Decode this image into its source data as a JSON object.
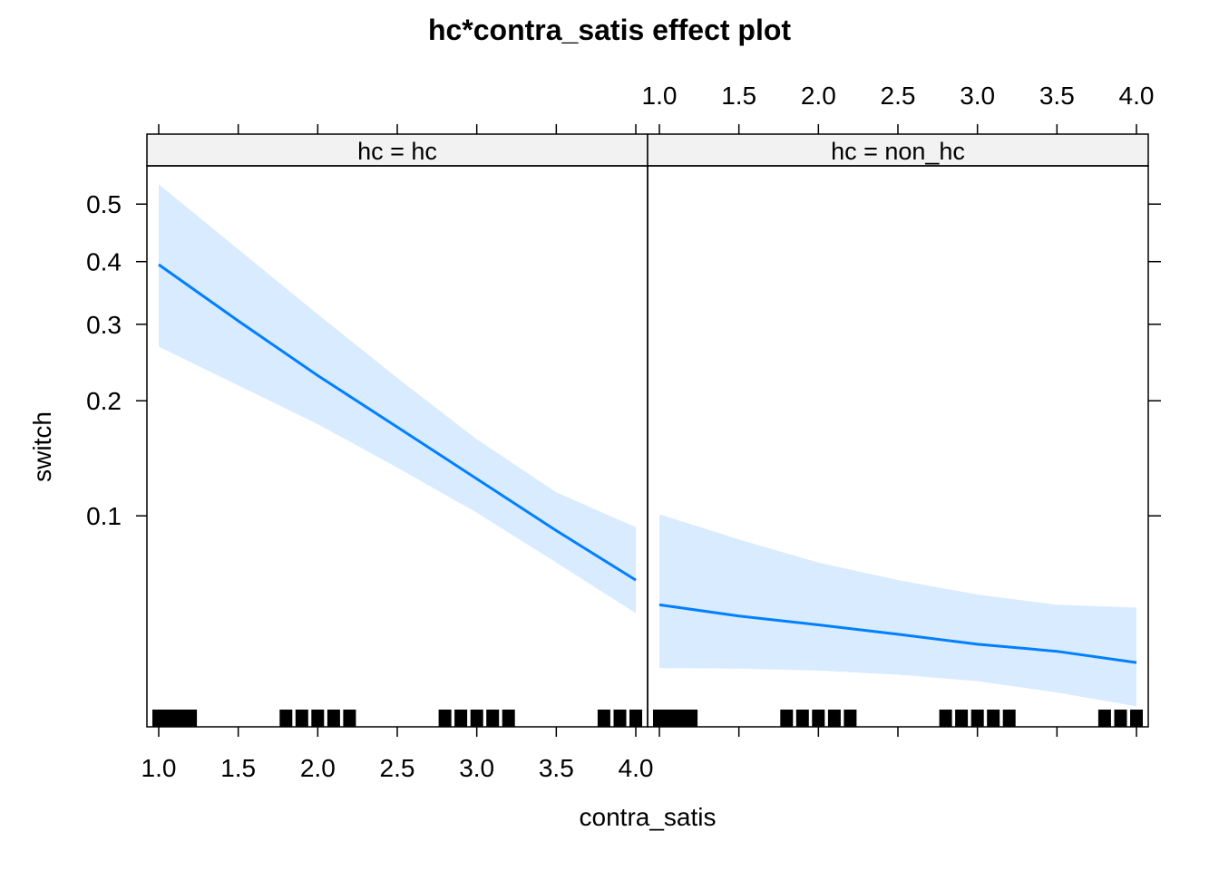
{
  "chart_data": {
    "type": "line",
    "title": "hc*contra_satis effect plot",
    "xlabel": "contra_satis",
    "ylabel": "switch",
    "y_scale": "logit",
    "xlim": [
      1.0,
      4.0
    ],
    "x_ticks": [
      "1.0",
      "1.5",
      "2.0",
      "2.5",
      "3.0",
      "3.5",
      "4.0"
    ],
    "y_ticks": [
      "0.1",
      "0.2",
      "0.3",
      "0.4",
      "0.5"
    ],
    "x_tick_values": [
      1.0,
      1.5,
      2.0,
      2.5,
      3.0,
      3.5,
      4.0
    ],
    "y_tick_values": [
      0.1,
      0.2,
      0.3,
      0.4,
      0.5
    ],
    "colors": {
      "line": "#0080ff",
      "band": "#d9ebff",
      "strip": "#f2f2f2"
    },
    "panels": [
      {
        "strip": "hc = hc",
        "x": [
          1.0,
          1.5,
          2.0,
          2.5,
          3.0,
          3.5,
          4.0
        ],
        "fit": [
          0.395,
          0.305,
          0.23,
          0.172,
          0.126,
          0.091,
          0.066
        ],
        "lower": [
          0.268,
          0.218,
          0.175,
          0.135,
          0.102,
          0.074,
          0.053
        ],
        "upper": [
          0.535,
          0.421,
          0.315,
          0.227,
          0.16,
          0.116,
          0.093
        ]
      },
      {
        "strip": "hc = non_hc",
        "x": [
          1.0,
          1.5,
          2.0,
          2.5,
          3.0,
          3.5,
          4.0
        ],
        "fit": [
          0.056,
          0.052,
          0.049,
          0.046,
          0.043,
          0.041,
          0.038
        ],
        "lower": [
          0.0366,
          0.0365,
          0.036,
          0.035,
          0.0335,
          0.031,
          0.0282
        ],
        "upper": [
          0.101,
          0.086,
          0.074,
          0.066,
          0.06,
          0.056,
          0.055
        ]
      }
    ],
    "rug": [
      [
        1.0,
        1.05,
        1.1,
        1.15,
        1.2,
        1.8,
        1.9,
        2.0,
        2.1,
        2.2,
        2.8,
        2.9,
        3.0,
        3.1,
        3.2,
        3.8,
        3.9,
        4.0
      ],
      [
        1.0,
        1.05,
        1.1,
        1.15,
        1.2,
        1.8,
        1.9,
        2.0,
        2.1,
        2.2,
        2.8,
        2.9,
        3.0,
        3.1,
        3.2,
        3.8,
        3.9,
        4.0
      ]
    ]
  }
}
